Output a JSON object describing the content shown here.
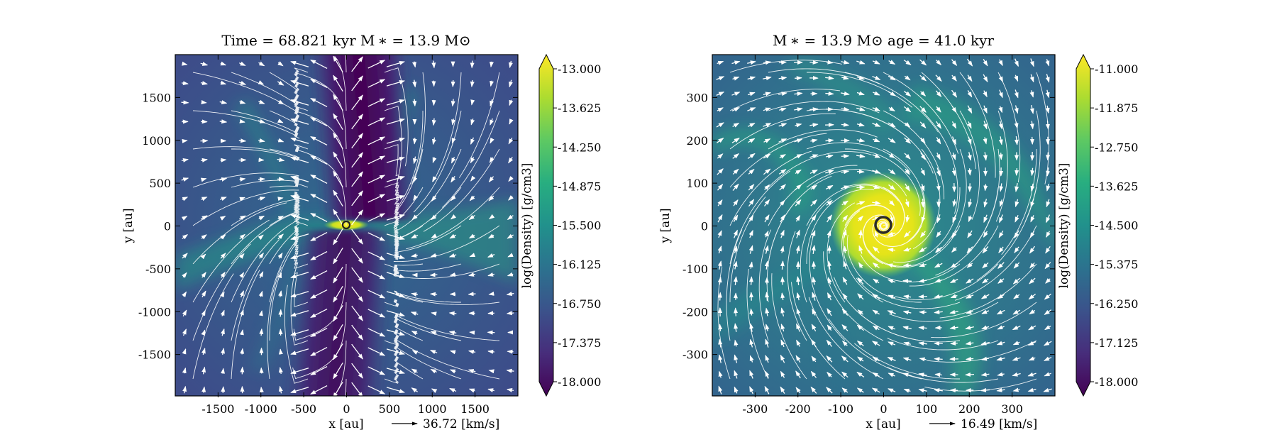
{
  "chart_data": [
    {
      "type": "heatmap",
      "title": "Time = 68.821 kyr    M$_*$ = 13.9 M$_\\odot$",
      "title_text": "Time = 68.821 kyr    M ∗ = 13.9 M⊙",
      "xlabel": "x [au]",
      "ylabel": "y [au]",
      "xlim": [
        -2000,
        2000
      ],
      "ylim": [
        -2000,
        2000
      ],
      "xticks": [
        -1500,
        -1000,
        -500,
        0,
        500,
        1000,
        1500
      ],
      "xtick_labels": [
        "-1500",
        "-1000",
        "-500",
        "0",
        "500",
        "1000",
        "1500"
      ],
      "yticks": [
        1500,
        1000,
        500,
        0,
        -500,
        -1000,
        -1500
      ],
      "ytick_labels": [
        "1500",
        "1000",
        "500",
        "0",
        "-500",
        "-1000",
        "-1500"
      ],
      "colorbar": {
        "label": "log(Density) [g/cm3]",
        "range": [
          -18.0,
          -13.0
        ],
        "ticks": [
          "-13.000",
          "-13.625",
          "-14.250",
          "-14.875",
          "-15.500",
          "-16.125",
          "-16.750",
          "-17.375",
          "-18.000"
        ],
        "colormap": "viridis"
      },
      "velocity_key": {
        "label": "36.72 [km/s]"
      },
      "features": {
        "background_level": -16.3,
        "bipolar_cavity_level": -17.6,
        "disk_level": -13.1,
        "star_position": [
          0,
          0
        ]
      }
    },
    {
      "type": "heatmap",
      "title": "M$_*$ = 13.9 M$_\\odot$          age = 41.0 kyr",
      "title_text": "M ∗ = 13.9 M⊙          age = 41.0 kyr",
      "xlabel": "x [au]",
      "ylabel": "y [au]",
      "xlim": [
        -400,
        400
      ],
      "ylim": [
        -400,
        400
      ],
      "xticks": [
        -300,
        -200,
        -100,
        0,
        100,
        200,
        300
      ],
      "xtick_labels": [
        "-300",
        "-200",
        "-100",
        "0",
        "100",
        "200",
        "300"
      ],
      "yticks": [
        300,
        200,
        100,
        0,
        -100,
        -200,
        -300
      ],
      "ytick_labels": [
        "300",
        "200",
        "100",
        "0",
        "-100",
        "-200",
        "-300"
      ],
      "colorbar": {
        "label": "log(Density) [g/cm3]",
        "range": [
          -18.0,
          -11.0
        ],
        "ticks": [
          "-11.000",
          "-11.875",
          "-12.750",
          "-13.625",
          "-14.500",
          "-15.375",
          "-16.250",
          "-17.125",
          "-18.000"
        ],
        "colormap": "viridis"
      },
      "velocity_key": {
        "label": "16.49 [km/s]"
      },
      "features": {
        "background_level": -14.8,
        "core_level": -11.6,
        "core_radius_au": 90,
        "star_position": [
          0,
          0
        ]
      }
    }
  ]
}
